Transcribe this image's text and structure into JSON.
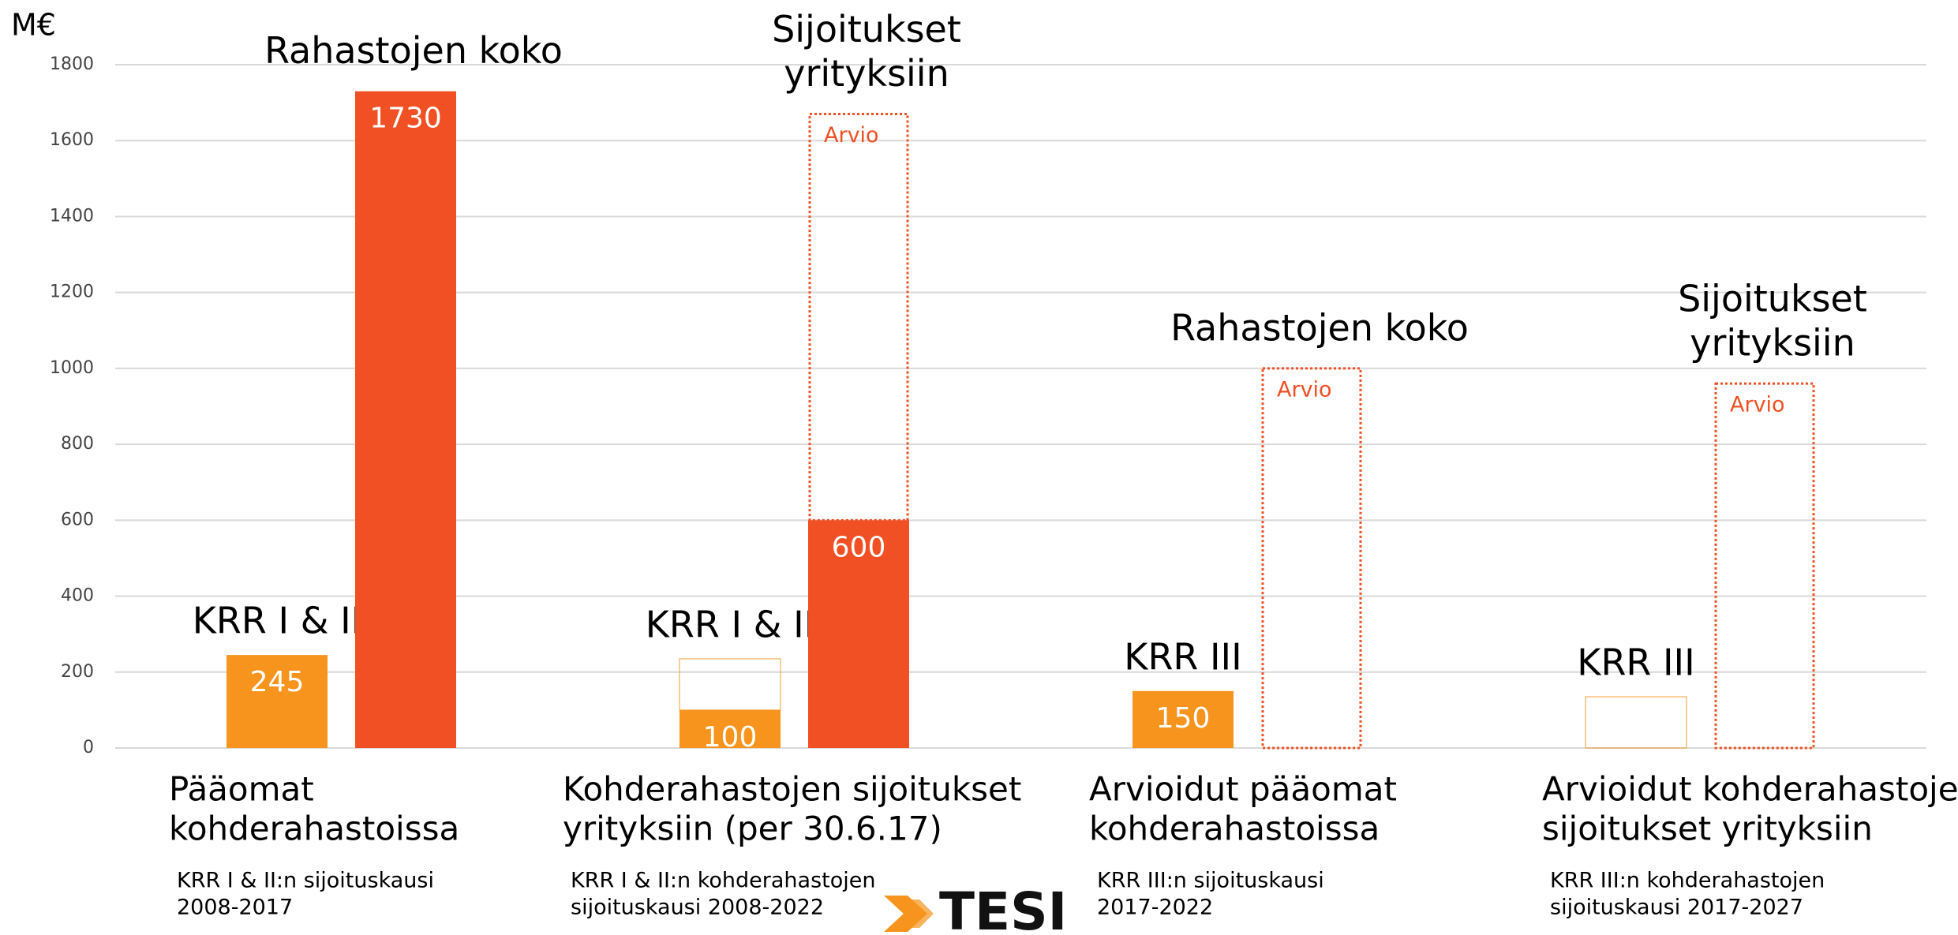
{
  "chart_data": {
    "type": "bar",
    "y_label": "M€",
    "ylim": [
      0,
      1800
    ],
    "yticks": [
      0,
      200,
      400,
      600,
      800,
      1000,
      1200,
      1400,
      1600,
      1800
    ],
    "grid": true,
    "groups": [
      {
        "category": [
          "Pääomat",
          "kohderahastoissa"
        ],
        "note": [
          "KRR I & II:n sijoituskausi",
          "2008-2017"
        ],
        "bars": [
          {
            "name": [
              "KRR I & II"
            ],
            "color": "#f7941d",
            "segments": [
              {
                "value": 245,
                "style": "solid",
                "show_value": true
              }
            ]
          },
          {
            "name": [
              "Rahastojen koko"
            ],
            "color": "#f05023",
            "segments": [
              {
                "value": 1730,
                "style": "solid",
                "show_value": true
              }
            ]
          }
        ]
      },
      {
        "category": [
          "Kohderahastojen sijoitukset",
          "yrityksiin (per 30.6.17)"
        ],
        "note": [
          "KRR I & II:n kohderahastojen",
          "sijoituskausi 2008-2022"
        ],
        "bars": [
          {
            "name": [
              "KRR I & II"
            ],
            "color": "#f7941d",
            "segments": [
              {
                "value": 100,
                "style": "solid",
                "show_value": true
              },
              {
                "value": 135,
                "style": "outline"
              }
            ]
          },
          {
            "name": [
              "Sijoitukset",
              "yrityksiin"
            ],
            "color": "#f05023",
            "segments": [
              {
                "value": 600,
                "style": "solid",
                "show_value": true
              },
              {
                "value": 1070,
                "style": "dotted",
                "label": "Arvio"
              }
            ]
          }
        ]
      },
      {
        "category": [
          "Arvioidut pääomat",
          "kohderahastoissa"
        ],
        "note": [
          "KRR III:n sijoituskausi",
          "2017-2022"
        ],
        "bars": [
          {
            "name": [
              "KRR III"
            ],
            "color": "#f7941d",
            "segments": [
              {
                "value": 150,
                "style": "solid",
                "show_value": true
              }
            ]
          },
          {
            "name": [
              "Rahastojen koko"
            ],
            "color": "#f05023",
            "segments": [
              {
                "value": 1000,
                "style": "dotted",
                "label": "Arvio"
              }
            ]
          }
        ]
      },
      {
        "category": [
          "Arvioidut kohderahastojen",
          "sijoitukset yrityksiin"
        ],
        "note": [
          "KRR III:n kohderahastojen",
          "sijoituskausi 2017-2027"
        ],
        "bars": [
          {
            "name": [
              "KRR III"
            ],
            "color": "#f7941d",
            "segments": [
              {
                "value": 135,
                "style": "outline"
              }
            ]
          },
          {
            "name": [
              "Sijoitukset",
              "yrityksiin"
            ],
            "color": "#f05023",
            "segments": [
              {
                "value": 960,
                "style": "dotted",
                "label": "Arvio"
              }
            ]
          }
        ]
      }
    ]
  },
  "logo": "TESI"
}
